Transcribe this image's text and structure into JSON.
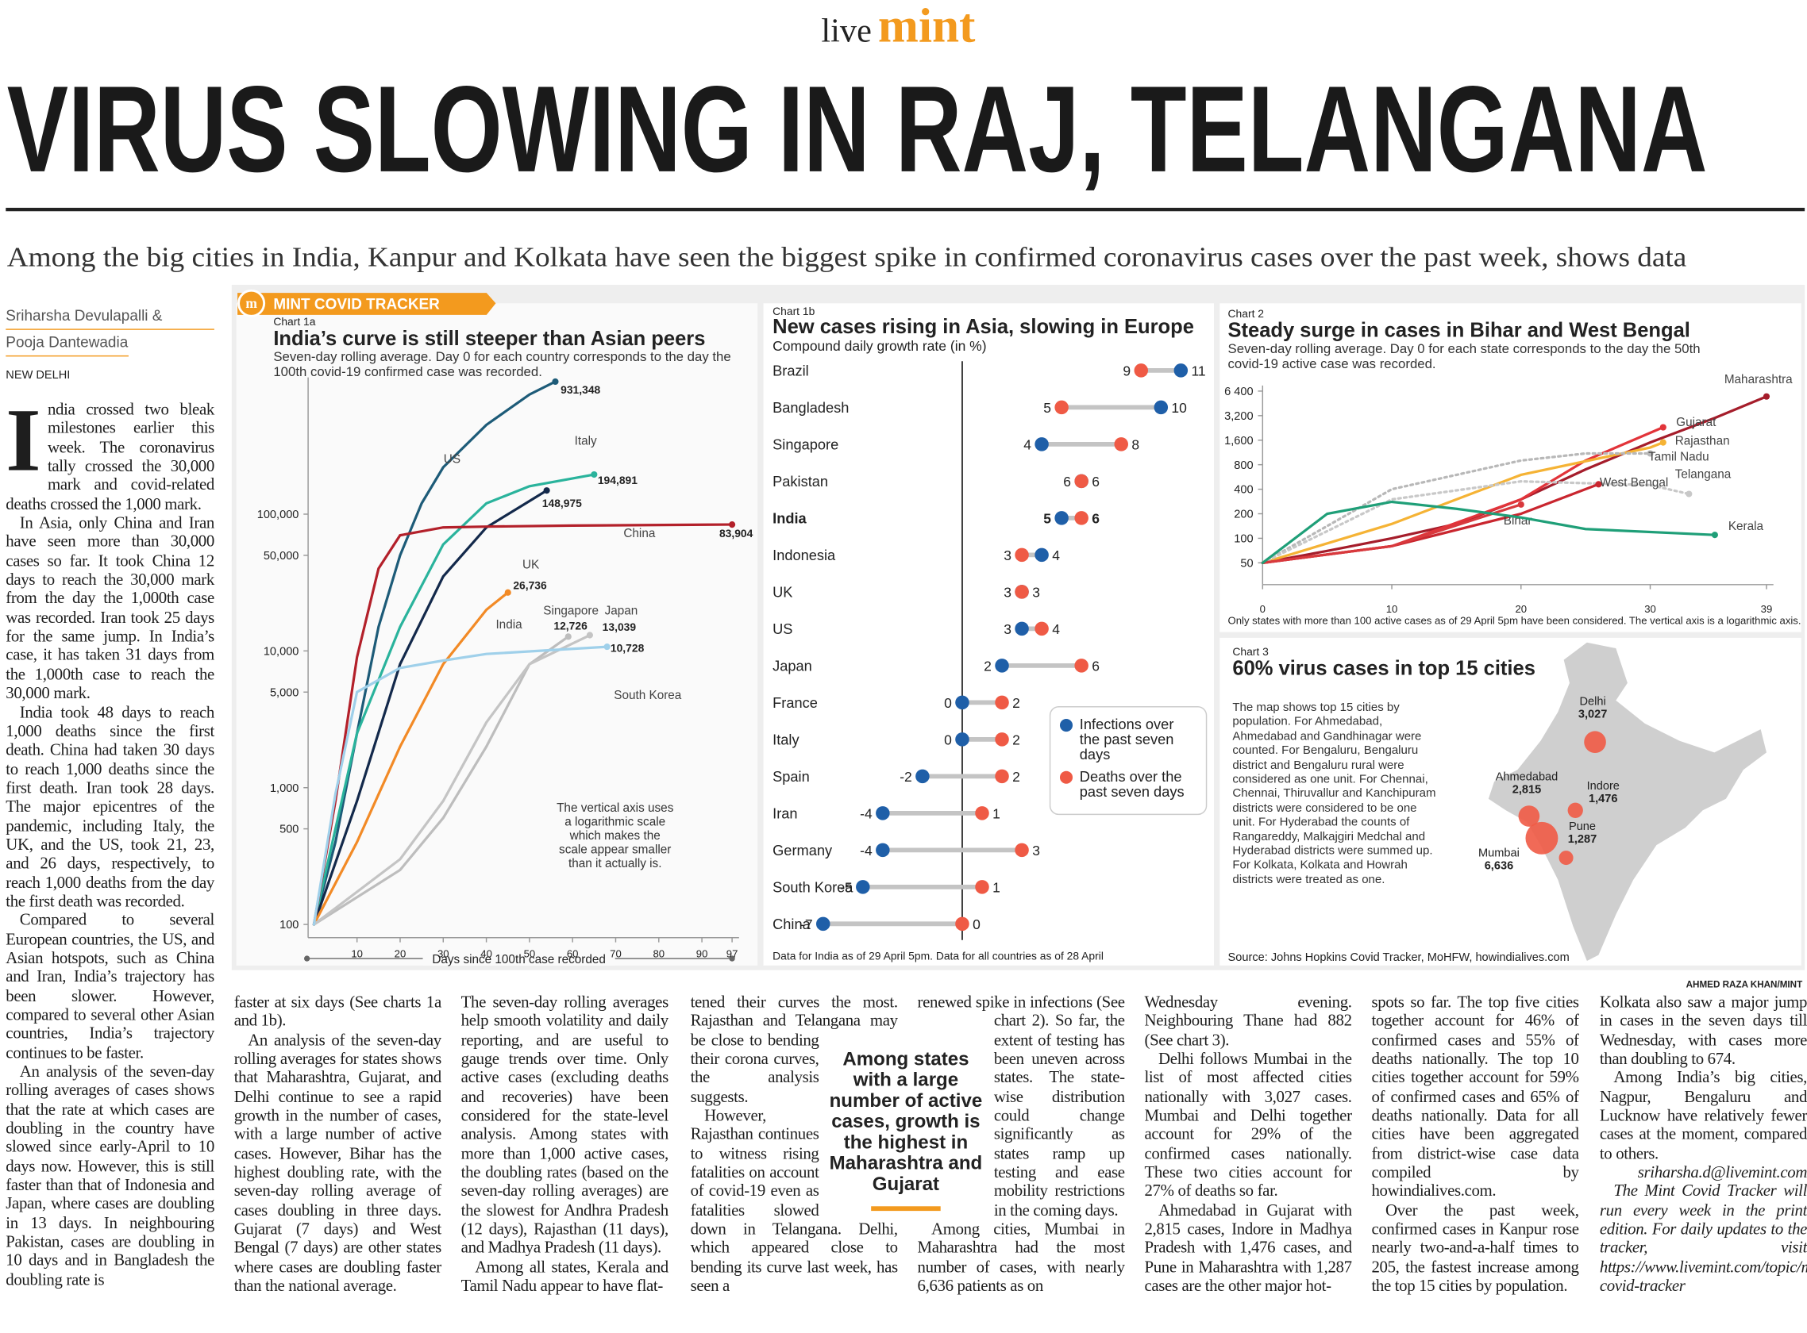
{
  "masthead": {
    "live": "live",
    "mint": "mint"
  },
  "headline": "VIRUS SLOWING IN RAJ, TELANGANA",
  "subtitle": "Among the big cities in India, Kanpur and Kolkata have seen the biggest spike in confirmed coronavirus cases over the past week, shows data",
  "byline": {
    "authors": [
      "Sriharsha Devulapalli &",
      "Pooja Dantewadia"
    ],
    "dateline": "NEW DELHI"
  },
  "tracker": {
    "logo": "m",
    "label": "MINT COVID TRACKER"
  },
  "credit": "AHMED RAZA KHAN/MINT",
  "chart_1a": {
    "type": "line",
    "kicker": "Chart 1a",
    "title": "India’s curve is still steeper than Asian peers",
    "subtitle": "Seven-day rolling average. Day 0 for each country corresponds to the day the 100th covid-19 confirmed case was recorded.",
    "note": "The vertical axis uses a logarithmic scale which makes the scale appear smaller than it actually is.",
    "x_label": "Days since 100th case recorded",
    "log_y": true,
    "xlim": [
      0,
      97
    ],
    "xticks": [
      10,
      20,
      30,
      40,
      50,
      60,
      70,
      80,
      90,
      97
    ],
    "ylim": [
      80,
      1000000
    ],
    "yticks": [
      100,
      500,
      {
        "value": 1000,
        "label": "1,000"
      },
      {
        "value": 5000,
        "label": "5,000"
      },
      {
        "value": 10000,
        "label": "10,000"
      },
      {
        "value": 50000,
        "label": "50,000"
      },
      {
        "value": 100000,
        "label": "100,000"
      }
    ],
    "series": [
      {
        "name": "US",
        "color": "#1d5b78",
        "x": [
          0,
          5,
          10,
          15,
          20,
          25,
          30,
          40,
          50,
          56
        ],
        "values": [
          100,
          400,
          2500,
          15000,
          50000,
          120000,
          220000,
          450000,
          750000,
          931348
        ],
        "end_label": "931,348"
      },
      {
        "name": "Italy",
        "color": "#2ab39c",
        "x": [
          0,
          10,
          20,
          30,
          40,
          50,
          65
        ],
        "values": [
          100,
          2500,
          15000,
          60000,
          120000,
          160000,
          194891
        ],
        "end_label": "194,891"
      },
      {
        "name": "UK",
        "color": "#13294b",
        "x": [
          0,
          10,
          20,
          30,
          40,
          54
        ],
        "values": [
          100,
          800,
          8000,
          35000,
          80000,
          148975
        ],
        "end_label": "148,975"
      },
      {
        "name": "China",
        "color": "#b3202a",
        "x": [
          0,
          5,
          10,
          15,
          20,
          30,
          40,
          60,
          97
        ],
        "values": [
          100,
          800,
          9000,
          40000,
          70000,
          80000,
          81000,
          82500,
          83904
        ],
        "end_label": "83,904"
      },
      {
        "name": "India",
        "color": "#f28a26",
        "x": [
          0,
          10,
          20,
          30,
          40,
          45
        ],
        "values": [
          100,
          400,
          2000,
          8000,
          20000,
          26736
        ],
        "end_label": "26,736"
      },
      {
        "name": "Singapore",
        "color": "#bdbdbd",
        "x": [
          0,
          20,
          30,
          40,
          50,
          59
        ],
        "values": [
          100,
          250,
          600,
          2000,
          8000,
          12726
        ],
        "end_label": "12,726"
      },
      {
        "name": "Japan",
        "color": "#c4c4c4",
        "x": [
          0,
          20,
          30,
          40,
          50,
          64
        ],
        "values": [
          100,
          300,
          800,
          3000,
          8000,
          13039
        ],
        "end_label": "13,039"
      },
      {
        "name": "South Korea",
        "color": "#9fd0ea",
        "x": [
          0,
          5,
          10,
          20,
          30,
          40,
          68
        ],
        "values": [
          100,
          900,
          5000,
          7500,
          8500,
          9500,
          10728
        ],
        "end_label": "10,728"
      }
    ]
  },
  "chart_1b": {
    "type": "dumbbell",
    "kicker": "Chart 1b",
    "title": "New cases rising in Asia, slowing in Europe",
    "subtitle": "Compound daily growth rate (in %)",
    "footnote": "Data for India as of 29 April 5pm. Data for all countries as of 28 April",
    "xlim": [
      -7.5,
      11.5
    ],
    "categories": [
      "Brazil",
      "Bangladesh",
      "Singapore",
      "Pakistan",
      "India",
      "Indonesia",
      "UK",
      "US",
      "Japan",
      "France",
      "Italy",
      "Spain",
      "Iran",
      "Germany",
      "South Korea",
      "China"
    ],
    "series": [
      {
        "name": "Infections over the past seven days",
        "color": "#1f5fa8",
        "values": [
          11,
          10,
          4,
          6,
          5,
          4,
          3,
          3,
          2,
          0,
          0,
          -2,
          -4,
          -4,
          -5,
          -7
        ]
      },
      {
        "name": "Deaths over the past seven days",
        "color": "#ef5a45",
        "values": [
          9,
          5,
          8,
          6,
          6,
          3,
          3,
          4,
          6,
          2,
          2,
          2,
          1,
          3,
          1,
          0
        ]
      }
    ]
  },
  "chart_2": {
    "type": "line",
    "kicker": "Chart 2",
    "title": "Steady surge in cases in Bihar and West Bengal",
    "subtitle": "Seven-day rolling average. Day 0 for each state corresponds to the day the 50th covid-19 active case was recorded.",
    "footnote": "Only states with more than 100 active cases as of 29 April 5pm have been considered. The vertical axis is a logarithmic axis.",
    "log_y": true,
    "xlim": [
      0,
      39
    ],
    "xticks": [
      0,
      10,
      20,
      30,
      39
    ],
    "ylim": [
      40,
      7500
    ],
    "yticks": [
      50,
      100,
      200,
      400,
      800,
      {
        "value": 1600,
        "label": "1,600"
      },
      {
        "value": 3200,
        "label": "3,200"
      },
      {
        "value": 6400,
        "label": "6 400"
      }
    ],
    "series": [
      {
        "name": "Maharashtra",
        "color": "#a51d2b",
        "x": [
          0,
          5,
          10,
          15,
          20,
          25,
          30,
          35,
          39
        ],
        "values": [
          50,
          70,
          100,
          150,
          300,
          700,
          1500,
          3000,
          5500
        ]
      },
      {
        "name": "Gujarat",
        "color": "#e2343a",
        "x": [
          0,
          10,
          20,
          25,
          31
        ],
        "values": [
          50,
          80,
          300,
          900,
          2300
        ]
      },
      {
        "name": "Rajasthan",
        "color": "#f5b335",
        "x": [
          0,
          10,
          20,
          30,
          31
        ],
        "values": [
          50,
          150,
          600,
          1300,
          1500
        ]
      },
      {
        "name": "Tamil Nadu",
        "color": "#b8b8b8",
        "x": [
          0,
          10,
          20,
          25,
          30
        ],
        "values": [
          50,
          400,
          900,
          1100,
          1100
        ]
      },
      {
        "name": "Telangana",
        "color": "#c8c8c8",
        "x": [
          0,
          10,
          20,
          30,
          33
        ],
        "values": [
          50,
          300,
          500,
          450,
          350
        ]
      },
      {
        "name": "West Bengal",
        "color": "#c9262f",
        "x": [
          0,
          10,
          20,
          26
        ],
        "values": [
          50,
          80,
          200,
          460
        ]
      },
      {
        "name": "Bihar",
        "color": "#d8393d",
        "x": [
          0,
          10,
          20
        ],
        "values": [
          50,
          80,
          260
        ]
      },
      {
        "name": "Kerala",
        "color": "#1f9f78",
        "x": [
          0,
          5,
          10,
          15,
          20,
          25,
          35
        ],
        "values": [
          50,
          200,
          280,
          230,
          180,
          130,
          110
        ]
      }
    ]
  },
  "chart_3": {
    "type": "bubble_map",
    "kicker": "Chart 3",
    "title": "60% virus cases in top 15 cities",
    "description": "The map shows top 15 cities by population. For Ahmedabad, Ahmedabad and Gandhinagar were counted. For Bengaluru, Bengaluru district and Bengaluru rural were considered as one unit. For Chennai, Chennai, Thiruvallur and Kanchipuram districts were considered to be one unit. For Hyderabad the counts of Rangareddy, Malkajgiri Medchal and Hyderabad districts were summed up. For Kolkata, Kolkata and Howrah districts were treated as one.",
    "source": "Source: Johns Hopkins Covid Tracker, MoHFW, howindialives.com",
    "color": "#ef5a45",
    "cities": [
      {
        "name": "Delhi",
        "value": 3027,
        "label": "3,027"
      },
      {
        "name": "Ahmedabad",
        "value": 2815,
        "label": "2,815"
      },
      {
        "name": "Indore",
        "value": 1476,
        "label": "1,476"
      },
      {
        "name": "Pune",
        "value": 1287,
        "label": "1,287"
      },
      {
        "name": "Mumbai",
        "value": 6636,
        "label": "6,636"
      }
    ]
  },
  "pull_quote": "Among states with a large number of active cases, growth is the highest in Maharashtra and Gujarat",
  "article": {
    "left": [
      "India crossed two bleak milestones earlier this week. The coronavirus tally crossed the 30,000 mark and covid-related deaths crossed the 1,000 mark.",
      "In Asia, only China and Iran have seen more than 30,000 cases so far. It took China 12 days to reach the 30,000 mark from the day the 1,000th case was recorded. Iran took 25 days for the same jump. In India’s case, it has taken 31 days from the 1,000th case to reach the 30,000 mark.",
      "India took 48 days to reach 1,000 deaths since the first death. China had taken 30 days to reach 1,000 deaths since the first death. Iran took 28 days. The major epicentres of the pandemic, including Italy, the UK, and the US, took 21, 23, and 26 days, respectively, to reach 1,000 deaths from the day the first death was recorded.",
      "Compared to several European countries, the US, and Asian hotspots, such as China and Iran, India’s trajectory has been slower. However, compared to several other Asian countries, India’s trajectory continues to be faster.",
      "An analysis of the seven-day rolling averages of cases shows that the rate at which cases are doubling in the country have slowed since early-April to 10 days now. However, this is still faster than that of Indonesia and Japan, where cases are doubling in 13 days. In neighbouring Pakistan, cases are doubling in 10 days and in Bangladesh the doubling rate is"
    ],
    "columns": [
      [
        "faster at six days (See charts 1a and 1b).",
        "An analysis of the seven-day rolling averages for states shows that Maharashtra, Gujarat, and Delhi continue to see a rapid growth in the number of cases, with a large number of active cases. However, Bihar has the highest doubling rate, with the seven-day rolling average of cases doubling in three days. Gujarat (7 days) and West Bengal (7 days) are other states where cases are doubling faster than the national average."
      ],
      [
        "The seven-day rolling averages help smooth volatility and daily reporting, and are useful to gauge trends over time. Only active cases (excluding deaths and recoveries) have been considered for the state-level analysis. Among states with more than 1,000 active cases, the doubling rates (based on the seven-day rolling averages) are the slowest for Andhra Pradesh (12 days), Rajasthan (11 days), and Madhya Pradesh (11 days).",
        "Among all states, Kerala and Tamil Nadu appear to have flat-"
      ],
      [
        "tened their curves the most. Rajasthan and Telangana may be close to bending their corona curves, the analysis suggests.",
        "However, Rajasthan continues to witness rising fatalities on account of covid-19 even as fatalities slowed down in Telangana. Delhi, which appeared close to bending its curve last week, has seen a"
      ],
      [
        "renewed spike in infections (See chart 2). So far, the extent of testing has been uneven across states. The state-wise distribution could change significantly as states ramp up testing and ease mobility restrictions in the coming days.",
        "Among cities, Mumbai in Maharashtra had the most number of cases, with nearly 6,636 patients as on"
      ],
      [
        "Wednesday evening. Neighbouring Thane had 882 (See chart 3).",
        "Delhi follows Mumbai in the list of most affected cities nationally with 3,027 cases. Mumbai and Delhi together account for 29% of the confirmed cases nationally. These two cities account for 27% of deaths so far.",
        "Ahmedabad in Gujarat with 2,815 cases, Indore in Madhya Pradesh with 1,476 cases, and Pune in Maharashtra with 1,287 cases are the other major hot-"
      ],
      [
        "spots so far. The top five cities together account for 46% of confirmed cases and 55% of deaths nationally. The top 10 cities together account for 59% of confirmed cases and 65% of deaths nationally. Data for all cities have been aggregated from district-wise case data compiled by howindialives.com.",
        "Over the past week, confirmed cases in Kanpur rose nearly two-and-a-half times to 205, the fastest increase among the top 15 cities by population."
      ],
      [
        "Kolkata also saw a major jump in cases in the seven days till Wednesday, with cases more than doubling to 674.",
        "Among India’s big cities, Nagpur, Bengaluru and Lucknow have relatively fewer cases at the moment, compared to others.",
        "sriharsha.d@livemint.com",
        "The Mint Covid Tracker will run every week in the print edition. For daily updates to the tracker, visit https://www.livemint.com/topic/mint-covid-tracker"
      ]
    ]
  }
}
